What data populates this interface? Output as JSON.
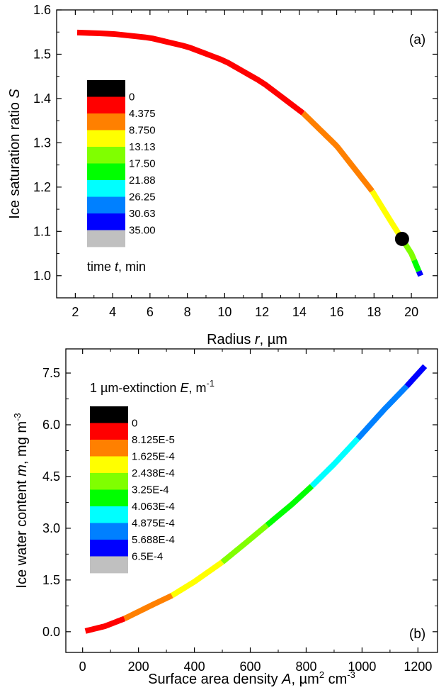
{
  "chart_data": [
    {
      "type": "line",
      "panel_label": "(a)",
      "xlabel": {
        "prefix": "Radius ",
        "var": "r",
        "suffix": ", ",
        "unit_mu": "µ",
        "unit_rest": "m"
      },
      "ylabel": {
        "prefix": "Ice saturation ratio ",
        "var": "S"
      },
      "xlim": [
        1,
        21.4
      ],
      "ylim": [
        0.95,
        1.6
      ],
      "xticks": [
        2,
        4,
        6,
        8,
        10,
        12,
        14,
        16,
        18,
        20
      ],
      "yticks": [
        1.0,
        1.1,
        1.2,
        1.3,
        1.4,
        1.5,
        1.6
      ],
      "xtick_labels": [
        "2",
        "4",
        "6",
        "8",
        "10",
        "12",
        "14",
        "16",
        "18",
        "20"
      ],
      "ytick_labels": [
        "1.0",
        "1.1",
        "1.2",
        "1.3",
        "1.4",
        "1.5",
        "1.6"
      ],
      "curve": {
        "x": [
          2.1,
          4.0,
          6.0,
          8.0,
          10.0,
          12.0,
          14.2,
          16.0,
          17.9,
          19.0,
          19.5,
          20.0,
          20.2,
          20.5
        ],
        "y": [
          1.549,
          1.546,
          1.537,
          1.517,
          1.485,
          1.437,
          1.367,
          1.293,
          1.191,
          1.116,
          1.083,
          1.05,
          1.03,
          1.0
        ],
        "color_breaks_x": [
          2.1,
          14.2,
          17.9,
          19.6,
          20.15,
          20.4,
          20.5
        ],
        "segment_colors": [
          "#ff0000",
          "#ff8000",
          "#ffff00",
          "#80ff00",
          "#00ff00",
          "#0000ff"
        ]
      },
      "marker": {
        "x": 19.5,
        "y": 1.083,
        "color": "#000000"
      },
      "legend": {
        "title_prefix": "time ",
        "title_var": "t",
        "title_suffix": ", min",
        "placement": "left",
        "colors": [
          "#000000",
          "#ff0000",
          "#ff8000",
          "#ffff00",
          "#80ff00",
          "#00ff00",
          "#00ffff",
          "#0080ff",
          "#0000ff",
          "#c0c0c0"
        ],
        "labels": [
          "0",
          "4.375",
          "8.750",
          "13.13",
          "17.50",
          "21.88",
          "26.25",
          "30.63",
          "35.00"
        ]
      }
    },
    {
      "type": "line",
      "panel_label": "(b)",
      "xlabel": {
        "prefix": "Surface area density ",
        "var": "A",
        "suffix": ", ",
        "unit_mu": "µ",
        "unit_rest": "m",
        "sup": "2",
        "after": " cm",
        "sup2": "-3"
      },
      "ylabel": {
        "prefix": "Ice water content ",
        "var": "m",
        "suffix": ", mg m",
        "sup": "-3"
      },
      "xlim": [
        -60,
        1270
      ],
      "ylim": [
        -0.6,
        8.2
      ],
      "xticks": [
        0,
        200,
        400,
        600,
        800,
        1000,
        1200
      ],
      "yticks": [
        0.0,
        1.5,
        3.0,
        4.5,
        6.0,
        7.5
      ],
      "xtick_labels": [
        "0",
        "200",
        "400",
        "600",
        "800",
        "1000",
        "1200"
      ],
      "ytick_labels": [
        "0.0",
        "1.5",
        "3.0",
        "4.5",
        "6.0",
        "7.5"
      ],
      "curve": {
        "x": [
          10,
          80,
          150,
          250,
          320,
          400,
          500,
          580,
          660,
          750,
          820,
          900,
          985,
          1080,
          1160,
          1225
        ],
        "y": [
          0.02,
          0.16,
          0.38,
          0.78,
          1.05,
          1.45,
          2.02,
          2.55,
          3.09,
          3.7,
          4.22,
          4.86,
          5.6,
          6.45,
          7.12,
          7.7
        ],
        "color_breaks_x": [
          10,
          150,
          320,
          500,
          660,
          820,
          985,
          1160,
          1225
        ],
        "segment_colors": [
          "#ff0000",
          "#ff8000",
          "#ffff00",
          "#80ff00",
          "#00ff00",
          "#00ffff",
          "#0080ff",
          "#0000ff"
        ]
      },
      "legend": {
        "title_prefix": "1 ",
        "title_mu": "µ",
        "title_rest": "m-extinction ",
        "title_var": "E",
        "title_suffix": ", m",
        "title_sup": "-1",
        "placement": "top-left",
        "colors": [
          "#000000",
          "#ff0000",
          "#ff8000",
          "#ffff00",
          "#80ff00",
          "#00ff00",
          "#00ffff",
          "#0080ff",
          "#0000ff",
          "#c0c0c0"
        ],
        "labels": [
          "0",
          "8.125E-5",
          "1.625E-4",
          "2.438E-4",
          "3.25E-4",
          "4.063E-4",
          "4.875E-4",
          "5.688E-4",
          "6.5E-4"
        ]
      }
    }
  ]
}
